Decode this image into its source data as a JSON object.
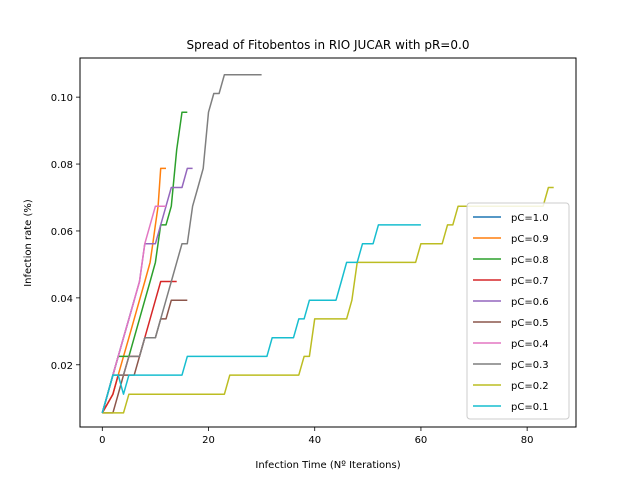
{
  "chart_data": {
    "type": "line",
    "title": "Spread of Fitobentos in RIO JUCAR with pR=0.0",
    "xlabel": "Infection Time (Nº Iterations)",
    "ylabel": "Infection rate (%)",
    "xlim": [
      -4.2,
      89.2
    ],
    "ylim": [
      0.0014,
      0.1117
    ],
    "xticks": [
      0,
      20,
      40,
      60,
      80
    ],
    "xtick_labels": [
      "0",
      "20",
      "40",
      "60",
      "80"
    ],
    "yticks": [
      0.02,
      0.04,
      0.06,
      0.08,
      0.1
    ],
    "ytick_labels": [
      "0.02",
      "0.04",
      "0.06",
      "0.08",
      "0.10"
    ],
    "grid": false,
    "legend_position": "lower-right",
    "series": [
      {
        "name": "pC=1.0",
        "color": "#1f77b4",
        "points": [
          [
            0,
            0.0056
          ],
          [
            1,
            0.0112
          ],
          [
            2,
            0.0169
          ],
          [
            3,
            0.0225
          ],
          [
            4,
            0.0281
          ],
          [
            5,
            0.0337
          ],
          [
            6,
            0.0393
          ]
        ]
      },
      {
        "name": "pC=0.9",
        "color": "#ff7f0e",
        "points": [
          [
            0,
            0.0056
          ],
          [
            2,
            0.0112
          ],
          [
            3,
            0.0169
          ],
          [
            4,
            0.0225
          ],
          [
            5,
            0.0281
          ],
          [
            6,
            0.0337
          ],
          [
            7,
            0.0393
          ],
          [
            8,
            0.0449
          ],
          [
            9,
            0.0506
          ],
          [
            9.5,
            0.0562
          ],
          [
            10,
            0.0618
          ],
          [
            10.5,
            0.0674
          ],
          [
            11,
            0.0787
          ],
          [
            12,
            0.0787
          ]
        ]
      },
      {
        "name": "pC=0.8",
        "color": "#2ca02c",
        "points": [
          [
            0,
            0.0056
          ],
          [
            1,
            0.0112
          ],
          [
            2,
            0.0169
          ],
          [
            3,
            0.0225
          ],
          [
            5,
            0.0225
          ],
          [
            6,
            0.0281
          ],
          [
            7,
            0.0337
          ],
          [
            8,
            0.0393
          ],
          [
            9,
            0.0449
          ],
          [
            10,
            0.0506
          ],
          [
            11,
            0.0618
          ],
          [
            12,
            0.0618
          ],
          [
            13,
            0.0674
          ],
          [
            14,
            0.0843
          ],
          [
            15,
            0.0955
          ],
          [
            16,
            0.0955
          ]
        ]
      },
      {
        "name": "pC=0.7",
        "color": "#d62728",
        "points": [
          [
            0,
            0.0056
          ],
          [
            2,
            0.0112
          ],
          [
            3,
            0.0169
          ],
          [
            4,
            0.0169
          ],
          [
            5,
            0.0225
          ],
          [
            7,
            0.0225
          ],
          [
            8,
            0.0281
          ],
          [
            9,
            0.0337
          ],
          [
            10,
            0.0393
          ],
          [
            11,
            0.0449
          ],
          [
            14,
            0.0449
          ]
        ]
      },
      {
        "name": "pC=0.6",
        "color": "#9467bd",
        "points": [
          [
            0,
            0.0056
          ],
          [
            1,
            0.0112
          ],
          [
            2,
            0.0169
          ],
          [
            3,
            0.0225
          ],
          [
            4,
            0.0281
          ],
          [
            5,
            0.0337
          ],
          [
            6,
            0.0393
          ],
          [
            7,
            0.0449
          ],
          [
            8,
            0.0562
          ],
          [
            10,
            0.0562
          ],
          [
            11,
            0.0618
          ],
          [
            12,
            0.0674
          ],
          [
            13,
            0.073
          ],
          [
            15,
            0.073
          ],
          [
            16,
            0.0787
          ],
          [
            17,
            0.0787
          ]
        ]
      },
      {
        "name": "pC=0.5",
        "color": "#8c564b",
        "points": [
          [
            0,
            0.0056
          ],
          [
            2,
            0.0056
          ],
          [
            3,
            0.0112
          ],
          [
            4,
            0.0169
          ],
          [
            6,
            0.0169
          ],
          [
            7,
            0.0225
          ],
          [
            8,
            0.0281
          ],
          [
            10,
            0.0281
          ],
          [
            11,
            0.0337
          ],
          [
            12,
            0.0337
          ],
          [
            13,
            0.0393
          ],
          [
            16,
            0.0393
          ]
        ]
      },
      {
        "name": "pC=0.4",
        "color": "#e377c2",
        "points": [
          [
            0,
            0.0056
          ],
          [
            1,
            0.0112
          ],
          [
            2,
            0.0169
          ],
          [
            3,
            0.0225
          ],
          [
            4,
            0.0281
          ],
          [
            5,
            0.0337
          ],
          [
            6,
            0.0393
          ],
          [
            7,
            0.0449
          ],
          [
            8,
            0.0562
          ],
          [
            9,
            0.0618
          ],
          [
            10,
            0.0674
          ],
          [
            12,
            0.0674
          ]
        ]
      },
      {
        "name": "pC=0.3",
        "color": "#7f7f7f",
        "points": [
          [
            0,
            0.0056
          ],
          [
            1,
            0.0112
          ],
          [
            2,
            0.0169
          ],
          [
            4,
            0.0169
          ],
          [
            5,
            0.0225
          ],
          [
            7,
            0.0225
          ],
          [
            8,
            0.0281
          ],
          [
            10,
            0.0281
          ],
          [
            11,
            0.0337
          ],
          [
            12,
            0.0393
          ],
          [
            13,
            0.0449
          ],
          [
            14,
            0.0506
          ],
          [
            15,
            0.0562
          ],
          [
            16,
            0.0562
          ],
          [
            17,
            0.0674
          ],
          [
            18,
            0.073
          ],
          [
            19,
            0.0787
          ],
          [
            20,
            0.0955
          ],
          [
            21,
            0.1011
          ],
          [
            22,
            0.1011
          ],
          [
            23,
            0.1067
          ],
          [
            30,
            0.1067
          ]
        ]
      },
      {
        "name": "pC=0.2",
        "color": "#bcbd22",
        "points": [
          [
            0,
            0.0056
          ],
          [
            4,
            0.0056
          ],
          [
            5,
            0.0112
          ],
          [
            23,
            0.0112
          ],
          [
            24,
            0.0169
          ],
          [
            37,
            0.0169
          ],
          [
            38,
            0.0225
          ],
          [
            39,
            0.0225
          ],
          [
            40,
            0.0337
          ],
          [
            46,
            0.0337
          ],
          [
            47,
            0.0393
          ],
          [
            48,
            0.0506
          ],
          [
            59,
            0.0506
          ],
          [
            60,
            0.0562
          ],
          [
            64,
            0.0562
          ],
          [
            65,
            0.0618
          ],
          [
            66,
            0.0618
          ],
          [
            67,
            0.0674
          ],
          [
            83,
            0.0674
          ],
          [
            84,
            0.073
          ],
          [
            85,
            0.073
          ]
        ]
      },
      {
        "name": "pC=0.1",
        "color": "#17becf",
        "points": [
          [
            0,
            0.0056
          ],
          [
            1,
            0.0112
          ],
          [
            2,
            0.0169
          ],
          [
            3,
            0.0169
          ],
          [
            4,
            0.0112
          ],
          [
            5,
            0.0169
          ],
          [
            15,
            0.0169
          ],
          [
            16,
            0.0225
          ],
          [
            31,
            0.0225
          ],
          [
            32,
            0.0281
          ],
          [
            36,
            0.0281
          ],
          [
            37,
            0.0337
          ],
          [
            38,
            0.0337
          ],
          [
            39,
            0.0393
          ],
          [
            44,
            0.0393
          ],
          [
            45,
            0.0449
          ],
          [
            46,
            0.0506
          ],
          [
            48,
            0.0506
          ],
          [
            49,
            0.0562
          ],
          [
            51,
            0.0562
          ],
          [
            52,
            0.0618
          ],
          [
            60,
            0.0618
          ]
        ]
      }
    ]
  }
}
